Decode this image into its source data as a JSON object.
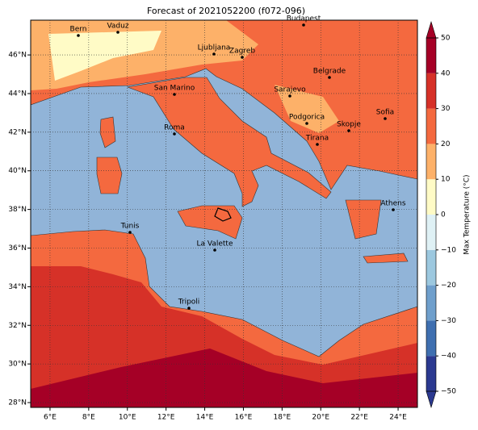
{
  "title": "Forecast of 2021052200 (f072-096)",
  "map": {
    "xlim": [
      5,
      25
    ],
    "ylim": [
      27.75,
      47.8
    ],
    "grid": true,
    "xticks": [
      {
        "value": 6,
        "label": "6°E"
      },
      {
        "value": 8,
        "label": "8°E"
      },
      {
        "value": 10,
        "label": "10°E"
      },
      {
        "value": 12,
        "label": "12°E"
      },
      {
        "value": 14,
        "label": "14°E"
      },
      {
        "value": 16,
        "label": "16°E"
      },
      {
        "value": 18,
        "label": "18°E"
      },
      {
        "value": 20,
        "label": "20°E"
      },
      {
        "value": 22,
        "label": "22°E"
      },
      {
        "value": 24,
        "label": "24°E"
      }
    ],
    "yticks": [
      {
        "value": 28,
        "label": "28°N"
      },
      {
        "value": 30,
        "label": "30°N"
      },
      {
        "value": 32,
        "label": "32°N"
      },
      {
        "value": 34,
        "label": "34°N"
      },
      {
        "value": 36,
        "label": "36°N"
      },
      {
        "value": 38,
        "label": "38°N"
      },
      {
        "value": 40,
        "label": "40°N"
      },
      {
        "value": 42,
        "label": "42°N"
      },
      {
        "value": 44,
        "label": "44°N"
      },
      {
        "value": 46,
        "label": "46°N"
      }
    ],
    "cities": [
      "Bern",
      "Vaduz",
      "Budapest",
      "Ljubljana",
      "Zagreb",
      "Belgrade",
      "San Marino",
      "Sarajevo",
      "Sofia",
      "Podgorica",
      "Skopje",
      "Roma",
      "Tirana",
      "Athens",
      "Tunis",
      "La Valette",
      "Tripoli"
    ]
  },
  "colorbar": {
    "label": "Max Temperature (°C)",
    "lim": [
      -50,
      50
    ],
    "ticks": [
      {
        "value": -50,
        "label": "−50"
      },
      {
        "value": -40,
        "label": "−40"
      },
      {
        "value": -30,
        "label": "−30"
      },
      {
        "value": -20,
        "label": "−20"
      },
      {
        "value": -10,
        "label": "−10"
      },
      0,
      10,
      20,
      30,
      40,
      50
    ],
    "colors": [
      "#2b3990",
      "#3f6fb0",
      "#6f9fcc",
      "#9cc8df",
      "#dff1f5",
      "#fffbc6",
      "#fdb169",
      "#f4693f",
      "#d63128",
      "#a50026"
    ]
  }
}
